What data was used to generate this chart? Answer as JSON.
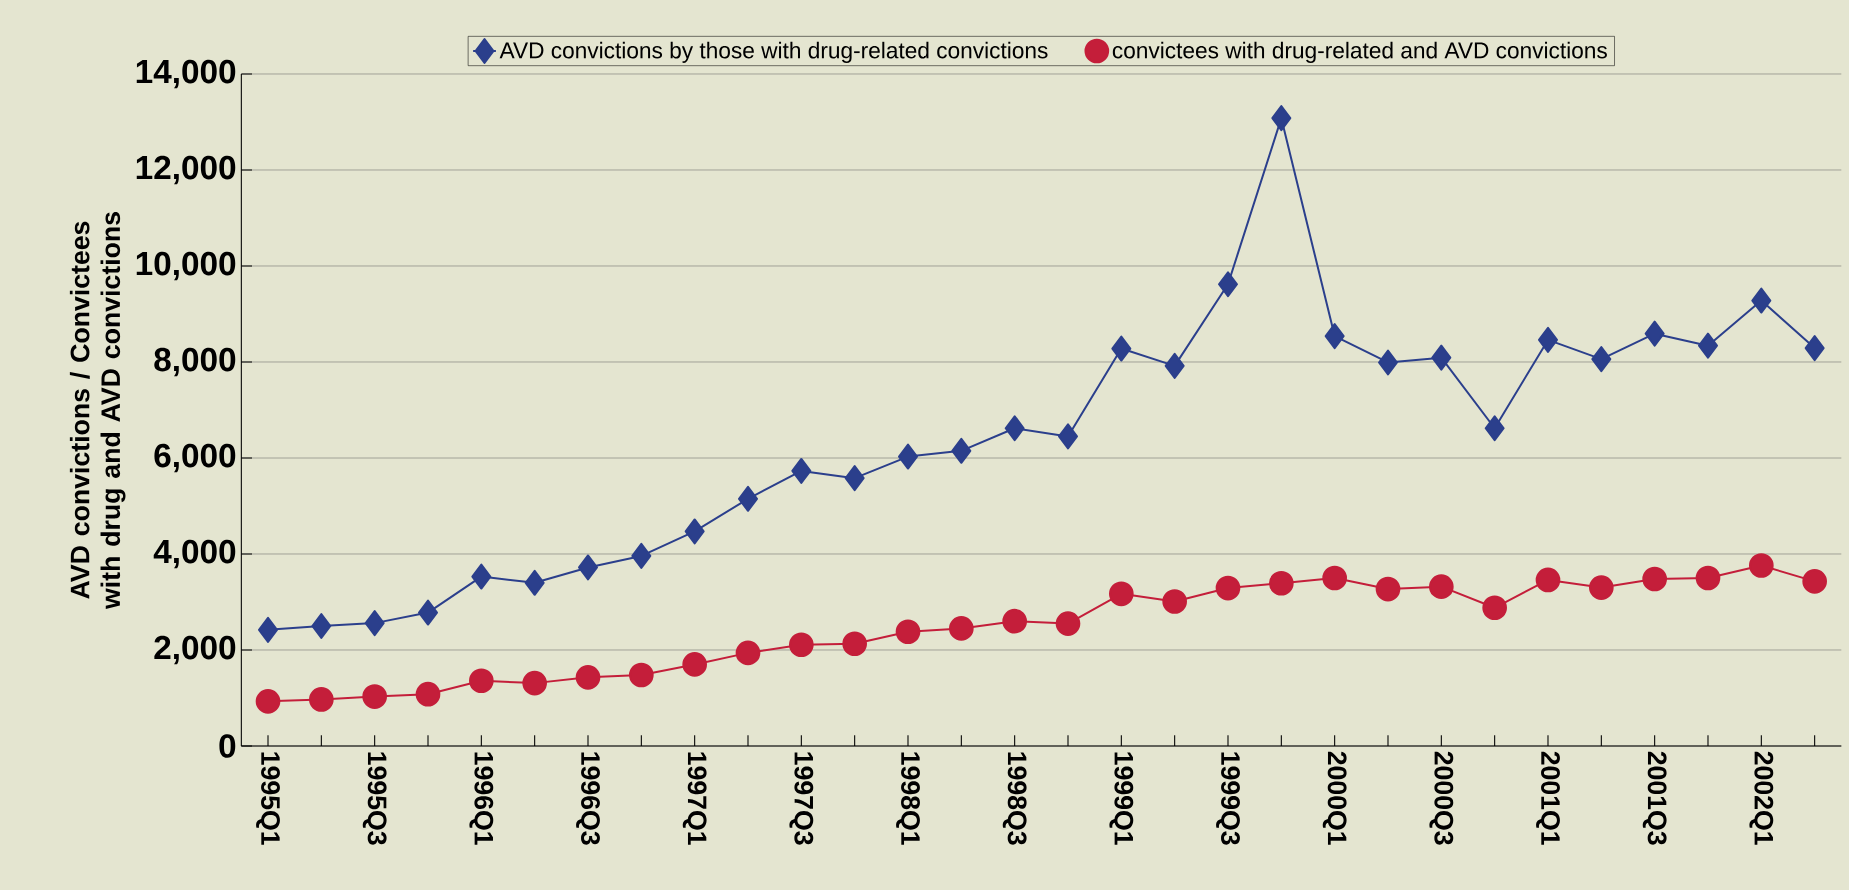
{
  "chart_data": {
    "type": "line",
    "ylabel": "AVD convictions / Convictees with drug and AVD convictions",
    "categories": [
      "1995Q1",
      null,
      "1995Q3",
      null,
      "1996Q1",
      null,
      "1996Q3",
      null,
      "1997Q1",
      null,
      "1997Q3",
      null,
      "1998Q1",
      null,
      "1998Q3",
      null,
      "1999Q1",
      null,
      "1999Q3",
      null,
      "2000Q1",
      null,
      "2000Q3",
      null,
      "2001Q1",
      null,
      "2001Q3",
      null,
      "2002Q1",
      null
    ],
    "series": [
      {
        "name": "AVD convictions by those with drug-related convictions",
        "color": "#2b3f8c",
        "marker": "diamond",
        "values": [
          2420,
          2500,
          2560,
          2780,
          3530,
          3400,
          3720,
          3960,
          4470,
          5150,
          5730,
          5580,
          6030,
          6150,
          6620,
          6450,
          8280,
          7920,
          9620,
          13080,
          8540,
          7990,
          8090,
          6620,
          8460,
          8060,
          8590,
          8340,
          9280,
          8290
        ]
      },
      {
        "name": "convictees with drug-related and AVD convictions",
        "color": "#c41e3a",
        "marker": "circle",
        "values": [
          930,
          970,
          1030,
          1080,
          1360,
          1310,
          1430,
          1480,
          1700,
          1940,
          2110,
          2130,
          2380,
          2450,
          2600,
          2550,
          3170,
          3010,
          3290,
          3390,
          3500,
          3270,
          3320,
          2880,
          3460,
          3300,
          3480,
          3500,
          3760,
          3430
        ]
      }
    ],
    "ylim": [
      0,
      14000
    ],
    "yticks": [
      0,
      {
        "value": 2000,
        "label": "2,000"
      },
      {
        "value": 4000,
        "label": "4,000"
      },
      {
        "value": 6000,
        "label": "6,000"
      },
      {
        "value": 8000,
        "label": "8,000"
      },
      {
        "value": 10000,
        "label": "10,000"
      },
      {
        "value": 12000,
        "label": "12,000"
      },
      {
        "value": 14000,
        "label": "14,000"
      }
    ],
    "grid": "y",
    "legend": "top"
  }
}
